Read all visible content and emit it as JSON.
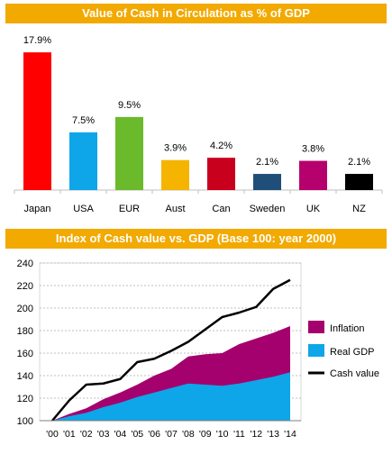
{
  "chart_data": [
    {
      "type": "bar",
      "title": "Value of Cash in Circulation as % of GDP",
      "categories": [
        "Japan",
        "USA",
        "EUR",
        "Aust",
        "Can",
        "Sweden",
        "UK",
        "NZ"
      ],
      "values": [
        17.9,
        7.5,
        9.5,
        3.9,
        4.2,
        2.1,
        3.8,
        2.1
      ],
      "labels": [
        "17.9%",
        "7.5%",
        "9.5%",
        "3.9%",
        "4.2%",
        "2.1%",
        "3.8%",
        "2.1%"
      ],
      "colors": [
        "#ff0000",
        "#0ea5e9",
        "#6aba2b",
        "#f5b400",
        "#c8001e",
        "#1f4e79",
        "#b5006e",
        "#000000"
      ],
      "ylim": [
        0,
        18.5
      ],
      "grid": false
    },
    {
      "type": "area",
      "title": "Index of Cash value vs. GDP (Base 100: year 2000)",
      "x": [
        "'00",
        "'01",
        "'02",
        "'03",
        "'04",
        "'05",
        "'06",
        "'07",
        "'08",
        "'09",
        "'10",
        "'11",
        "'12",
        "'13",
        "'14"
      ],
      "ylim": [
        100,
        240
      ],
      "yticks": [
        100,
        120,
        140,
        160,
        180,
        200,
        220,
        240
      ],
      "grid": true,
      "legend_position": "right",
      "series": [
        {
          "name": "Real GDP",
          "color": "#0ea5e9",
          "values": [
            100,
            104,
            107,
            112,
            116,
            121,
            125,
            129,
            133,
            132,
            131,
            133,
            136,
            139,
            143
          ]
        },
        {
          "name": "Inflation",
          "color": "#a4006e",
          "values": [
            100,
            106,
            111,
            119,
            125,
            132,
            140,
            146,
            157,
            159,
            160,
            168,
            173,
            178,
            184
          ]
        },
        {
          "name": "Cash value",
          "color": "#000000",
          "values": [
            100,
            118,
            132,
            133,
            137,
            152,
            155,
            162,
            170,
            181,
            192,
            196,
            201,
            217,
            225
          ]
        }
      ]
    }
  ]
}
